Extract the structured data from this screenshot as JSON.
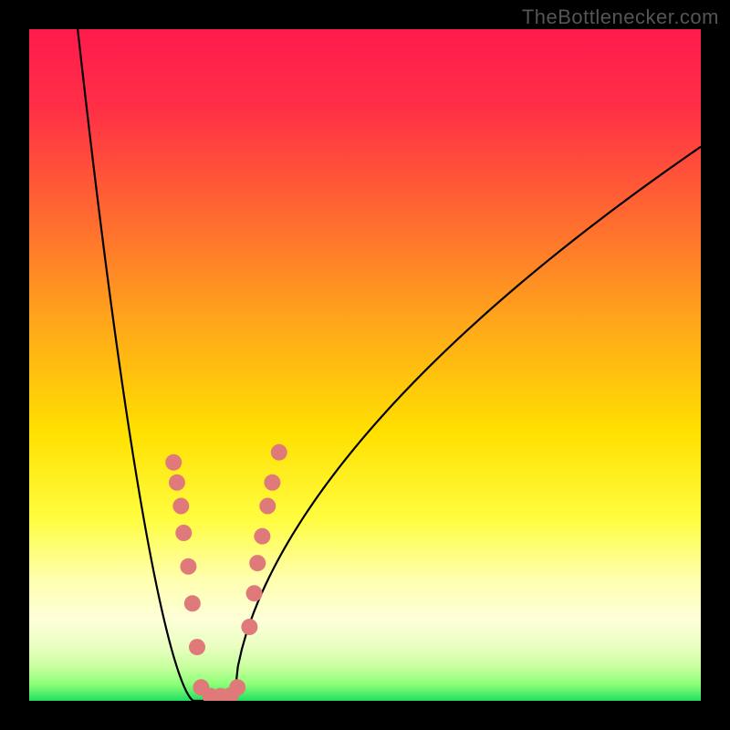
{
  "watermark": "TheBottlenecker.com",
  "frame": {
    "outer_width": 800,
    "outer_height": 800,
    "border": 32,
    "bg_color": "#000000"
  },
  "plot": {
    "type": "line-with-markers",
    "xlim": [
      0,
      100
    ],
    "ylim": [
      0,
      100
    ],
    "background": {
      "type": "vertical-gradient",
      "stops": [
        {
          "t": 0.0,
          "color": "#ff1a4d"
        },
        {
          "t": 0.12,
          "color": "#ff3046"
        },
        {
          "t": 0.28,
          "color": "#ff6a30"
        },
        {
          "t": 0.44,
          "color": "#ffa81a"
        },
        {
          "t": 0.6,
          "color": "#ffe000"
        },
        {
          "t": 0.73,
          "color": "#fffd40"
        },
        {
          "t": 0.82,
          "color": "#ffffb0"
        },
        {
          "t": 0.88,
          "color": "#fdffd8"
        },
        {
          "t": 0.92,
          "color": "#e8ffc0"
        },
        {
          "t": 0.95,
          "color": "#c8ff9e"
        },
        {
          "t": 0.975,
          "color": "#8eff78"
        },
        {
          "t": 1.0,
          "color": "#20e060"
        }
      ]
    },
    "curve": {
      "min_x": 27.5,
      "left_start_x": 7.0,
      "left_start_y": 102,
      "right_end_x": 100,
      "right_end_y": 82.5,
      "stroke": "#000000",
      "stroke_width": 2.2,
      "left_shape_k": 1.55,
      "right_shape_k": 0.58,
      "floor_half_width": 3.0
    },
    "markers": {
      "fill": "#e07a7a",
      "radius": 9,
      "left_points": [
        {
          "x": 21.5,
          "y": 35.5
        },
        {
          "x": 22.0,
          "y": 32.5
        },
        {
          "x": 22.6,
          "y": 29.0
        },
        {
          "x": 23.0,
          "y": 25.0
        },
        {
          "x": 23.7,
          "y": 20.0
        },
        {
          "x": 24.3,
          "y": 14.5
        },
        {
          "x": 25.0,
          "y": 8.0
        }
      ],
      "bottom_points": [
        {
          "x": 25.6,
          "y": 2.0
        },
        {
          "x": 27.0,
          "y": 0.7
        },
        {
          "x": 28.5,
          "y": 0.7
        },
        {
          "x": 30.0,
          "y": 0.8
        },
        {
          "x": 31.0,
          "y": 2.0
        }
      ],
      "right_points": [
        {
          "x": 32.8,
          "y": 11.0
        },
        {
          "x": 33.5,
          "y": 16.0
        },
        {
          "x": 34.0,
          "y": 20.5
        },
        {
          "x": 34.7,
          "y": 24.5
        },
        {
          "x": 35.5,
          "y": 29.0
        },
        {
          "x": 36.2,
          "y": 32.5
        },
        {
          "x": 37.2,
          "y": 37.0
        }
      ]
    }
  }
}
